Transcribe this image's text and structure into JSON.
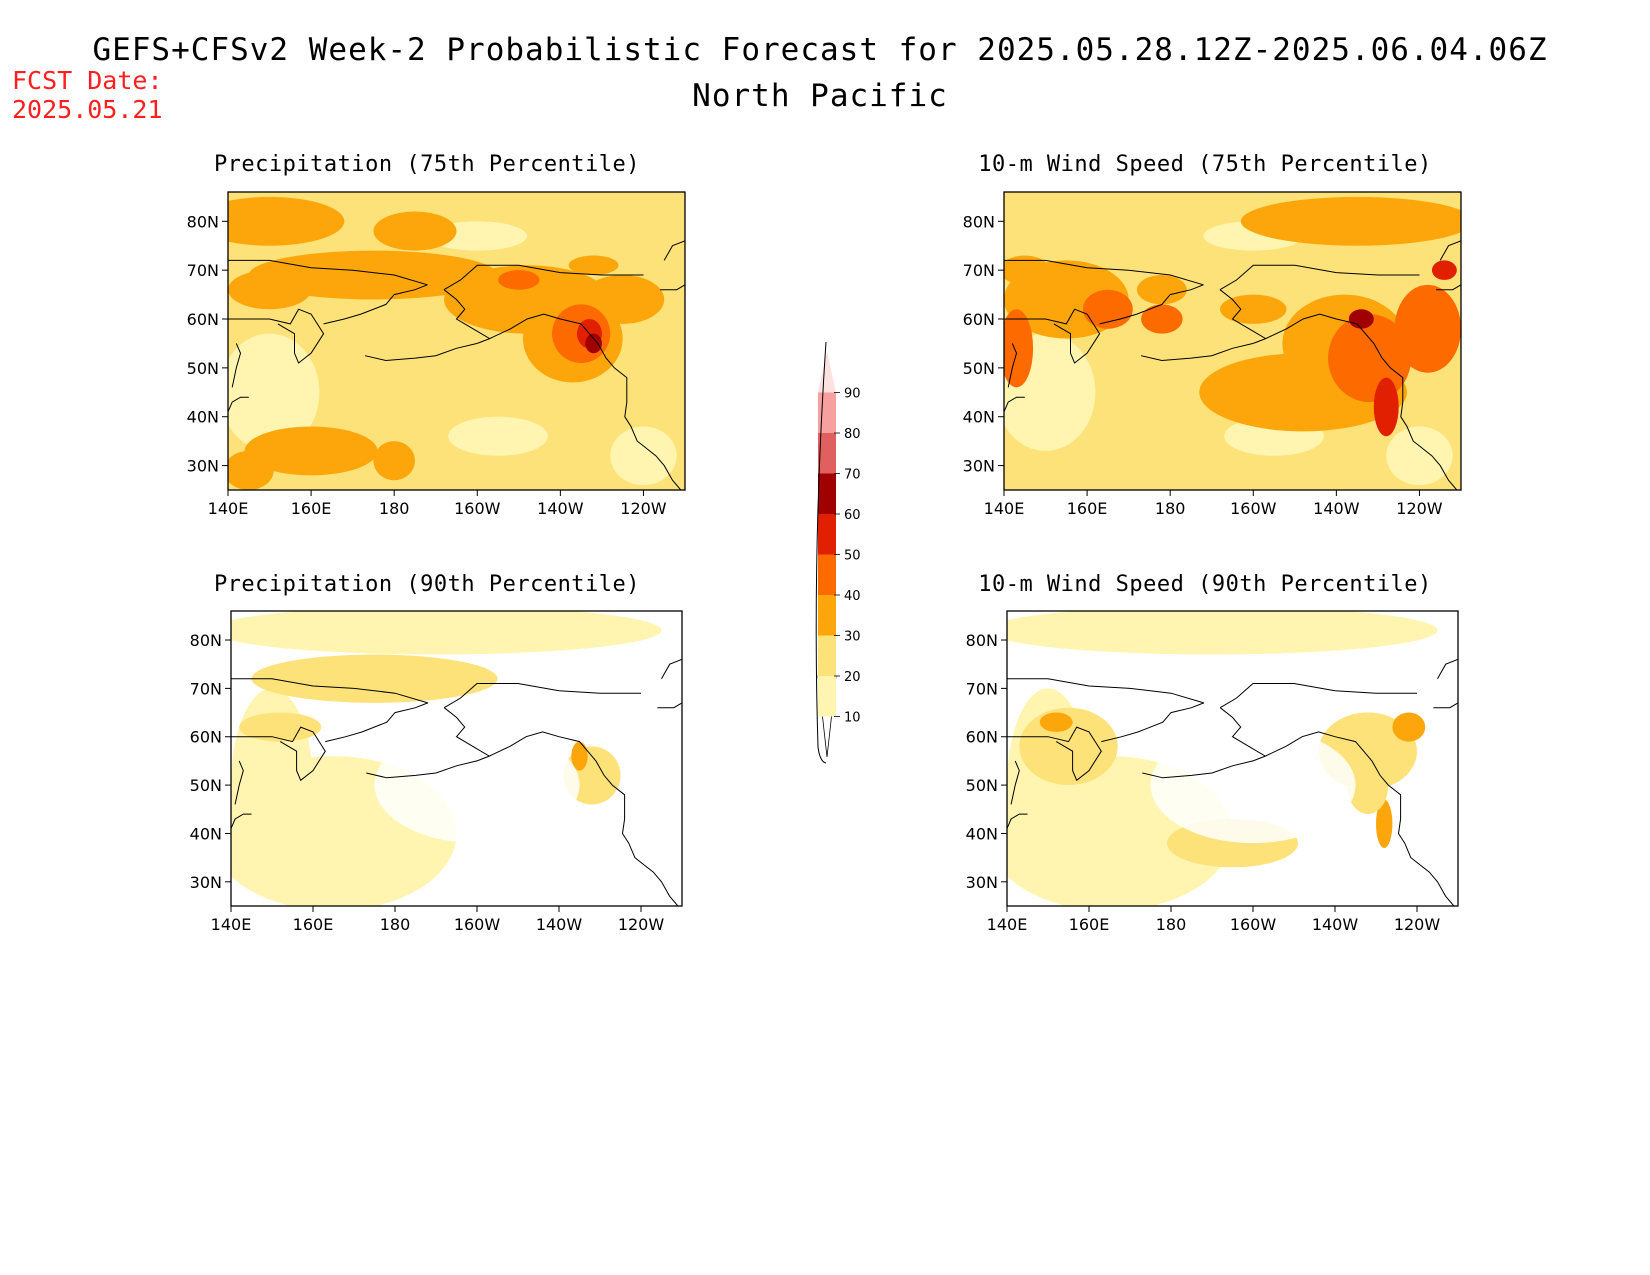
{
  "header": {
    "fcst_label": "FCST Date:",
    "fcst_date": "2025.05.21",
    "title": "GEFS+CFSv2 Week-2 Probabilistic Forecast for 2025.05.28.12Z-2025.06.04.06Z",
    "region": "North Pacific"
  },
  "panels": [
    {
      "title": "Precipitation (75th Percentile)",
      "level": "high",
      "hot": "ak-coast"
    },
    {
      "title": "10-m Wind Speed (75th Percentile)",
      "level": "high",
      "hot": "wide"
    },
    {
      "title": "Precipitation (90th Percentile)",
      "level": "low",
      "hot": "ak-coast"
    },
    {
      "title": "10-m Wind Speed (90th Percentile)",
      "level": "low",
      "hot": "wide"
    }
  ],
  "axes": {
    "lon_labels": [
      "140E",
      "160E",
      "180",
      "160W",
      "140W",
      "120W"
    ],
    "lat_labels": [
      "80N",
      "70N",
      "60N",
      "50N",
      "40N",
      "30N"
    ]
  },
  "colorbar": {
    "levels": [
      "10",
      "20",
      "30",
      "40",
      "50",
      "60",
      "70",
      "80",
      "90"
    ],
    "colors": [
      "#fff5b0",
      "#fde27a",
      "#fca60c",
      "#fd6a00",
      "#e02000",
      "#a00000",
      "#e06060",
      "#f6a0a0",
      "#fde0e0"
    ]
  }
}
